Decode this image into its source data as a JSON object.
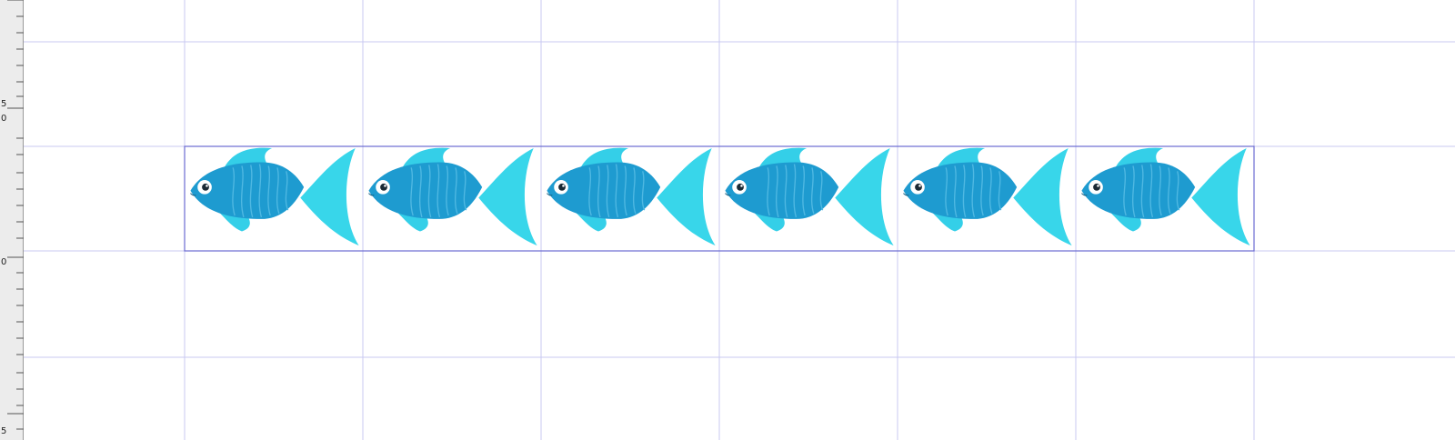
{
  "ruler": {
    "label_top": "5",
    "label_mid_a": "0",
    "label_mid_b": "0",
    "label_bottom": "5"
  },
  "pattern": {
    "fish_count": 6,
    "fish_icon": "fish-icon",
    "colors": {
      "body": "#1e9bd0",
      "body_stripe": "#4fb8e2",
      "fin": "#34cfe8",
      "tail": "#38d6ea",
      "eye_white": "#ffffff",
      "eye_pupil": "#1b2a35",
      "grid_line": "#c9c9f2",
      "selection_border": "#6b6bd1"
    }
  }
}
